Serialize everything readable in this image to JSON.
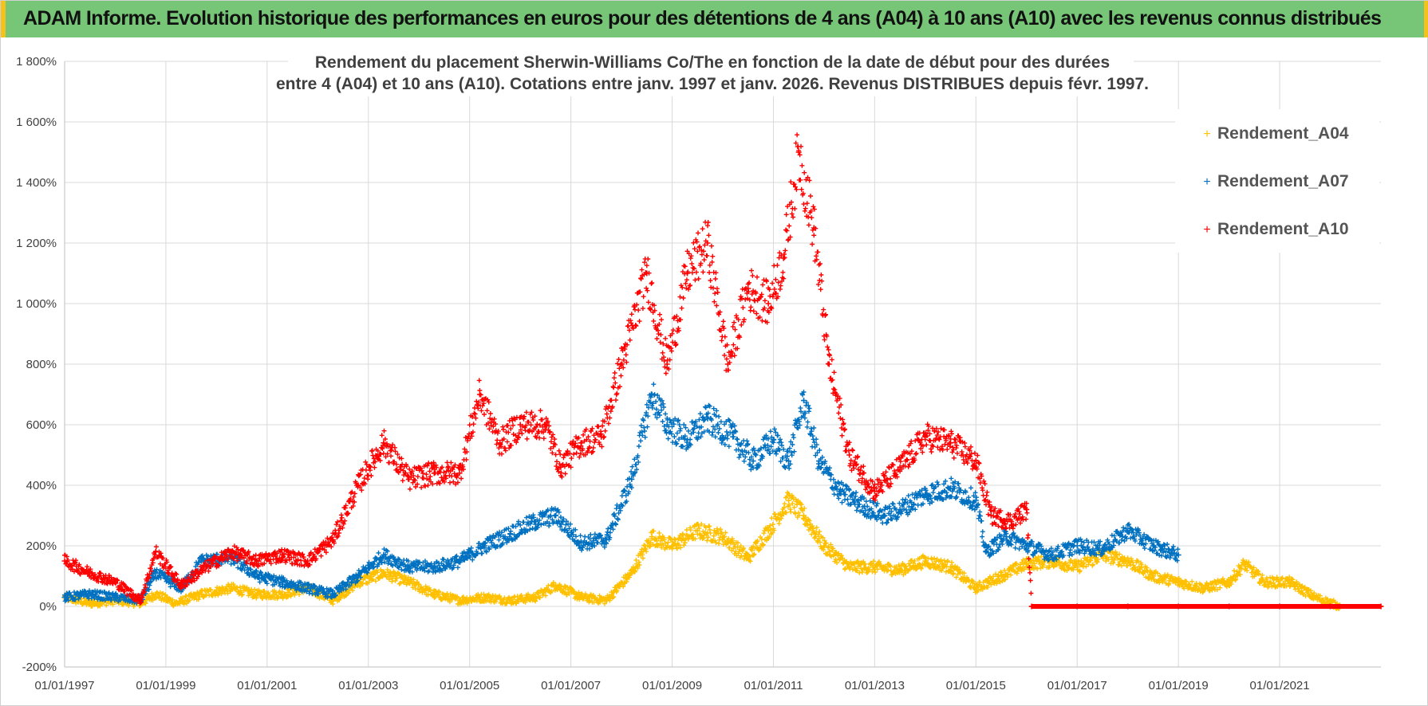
{
  "banner": {
    "title": "ADAM Informe. Evolution historique des performances en euros pour des détentions de 4 ans (A04) à 10 ans (A10) avec les revenus connus distribués"
  },
  "colors": {
    "banner_bg": "#77c678",
    "banner_accent": "#f4c21a",
    "A04": "#ffc000",
    "A07": "#0070c0",
    "A10": "#ff0000",
    "grid": "#d9d9d9"
  },
  "chart_data": {
    "type": "scatter",
    "title": "Rendement du placement Sherwin-Williams Co/The en fonction de la date de début pour des durées",
    "subtitle": "entre 4 (A04) et 10 ans (A10). Cotations entre janv. 1997 et janv. 2026. Revenus DISTRIBUES depuis févr. 1997.",
    "xlabel": "",
    "ylabel": "",
    "xlim": [
      1997.0,
      2023.0
    ],
    "ylim": [
      -200,
      1800
    ],
    "marker": "+",
    "grid": true,
    "legend_position": "right",
    "y_ticks": [
      {
        "value": -200,
        "label": "-200%"
      },
      {
        "value": 0,
        "label": "0%"
      },
      {
        "value": 200,
        "label": "200%"
      },
      {
        "value": 400,
        "label": "400%"
      },
      {
        "value": 600,
        "label": "600%"
      },
      {
        "value": 800,
        "label": "800%"
      },
      {
        "value": 1000,
        "label": "1 000%"
      },
      {
        "value": 1200,
        "label": "1 200%"
      },
      {
        "value": 1400,
        "label": "1 400%"
      },
      {
        "value": 1600,
        "label": "1 600%"
      },
      {
        "value": 1800,
        "label": "1 800%"
      }
    ],
    "x_ticks": [
      {
        "value": 1997,
        "label": "01/01/1997"
      },
      {
        "value": 1999,
        "label": "01/01/1999"
      },
      {
        "value": 2001,
        "label": "01/01/2001"
      },
      {
        "value": 2003,
        "label": "01/01/2003"
      },
      {
        "value": 2005,
        "label": "01/01/2005"
      },
      {
        "value": 2007,
        "label": "01/01/2007"
      },
      {
        "value": 2009,
        "label": "01/01/2009"
      },
      {
        "value": 2011,
        "label": "01/01/2011"
      },
      {
        "value": 2013,
        "label": "01/01/2013"
      },
      {
        "value": 2015,
        "label": "01/01/2015"
      },
      {
        "value": 2017,
        "label": "01/01/2017"
      },
      {
        "value": 2019,
        "label": "01/01/2019"
      },
      {
        "value": 2021,
        "label": "01/01/2021"
      }
    ],
    "series": [
      {
        "name": "Rendement_A04",
        "color": "#ffc000",
        "points": [
          [
            1997.0,
            30
          ],
          [
            1997.5,
            10
          ],
          [
            1998.0,
            20
          ],
          [
            1998.5,
            10
          ],
          [
            1998.8,
            40
          ],
          [
            1999.2,
            10
          ],
          [
            1999.7,
            40
          ],
          [
            2000.3,
            60
          ],
          [
            2000.8,
            40
          ],
          [
            2001.3,
            40
          ],
          [
            2001.8,
            60
          ],
          [
            2002.3,
            20
          ],
          [
            2002.8,
            80
          ],
          [
            2003.3,
            110
          ],
          [
            2003.8,
            80
          ],
          [
            2004.3,
            40
          ],
          [
            2004.8,
            20
          ],
          [
            2005.3,
            30
          ],
          [
            2005.8,
            20
          ],
          [
            2006.3,
            30
          ],
          [
            2006.7,
            70
          ],
          [
            2007.2,
            30
          ],
          [
            2007.7,
            20
          ],
          [
            2008.2,
            110
          ],
          [
            2008.6,
            230
          ],
          [
            2009.0,
            200
          ],
          [
            2009.5,
            250
          ],
          [
            2010.0,
            230
          ],
          [
            2010.5,
            160
          ],
          [
            2010.9,
            250
          ],
          [
            2011.3,
            350
          ],
          [
            2011.6,
            300
          ],
          [
            2012.0,
            200
          ],
          [
            2012.5,
            130
          ],
          [
            2013.0,
            130
          ],
          [
            2013.5,
            120
          ],
          [
            2014.0,
            150
          ],
          [
            2014.5,
            130
          ],
          [
            2015.0,
            60
          ],
          [
            2015.5,
            100
          ],
          [
            2016.0,
            140
          ],
          [
            2016.5,
            150
          ],
          [
            2017.0,
            130
          ],
          [
            2017.5,
            170
          ],
          [
            2018.0,
            150
          ],
          [
            2018.5,
            100
          ],
          [
            2019.0,
            80
          ],
          [
            2019.5,
            60
          ],
          [
            2020.0,
            80
          ],
          [
            2020.3,
            140
          ],
          [
            2020.7,
            80
          ],
          [
            2021.2,
            80
          ],
          [
            2021.7,
            30
          ],
          [
            2022.2,
            0
          ],
          [
            2023.0,
            0
          ]
        ]
      },
      {
        "name": "Rendement_A07",
        "color": "#0070c0",
        "points": [
          [
            1997.0,
            30
          ],
          [
            1997.5,
            40
          ],
          [
            1998.0,
            30
          ],
          [
            1998.5,
            20
          ],
          [
            1998.8,
            110
          ],
          [
            1999.3,
            60
          ],
          [
            1999.7,
            150
          ],
          [
            2000.3,
            160
          ],
          [
            2000.8,
            100
          ],
          [
            2001.3,
            80
          ],
          [
            2001.8,
            60
          ],
          [
            2002.3,
            40
          ],
          [
            2002.8,
            100
          ],
          [
            2003.3,
            170
          ],
          [
            2003.8,
            130
          ],
          [
            2004.3,
            130
          ],
          [
            2004.8,
            150
          ],
          [
            2005.3,
            200
          ],
          [
            2005.8,
            240
          ],
          [
            2006.3,
            280
          ],
          [
            2006.7,
            300
          ],
          [
            2007.2,
            210
          ],
          [
            2007.7,
            220
          ],
          [
            2008.2,
            420
          ],
          [
            2008.6,
            700
          ],
          [
            2008.9,
            600
          ],
          [
            2009.3,
            550
          ],
          [
            2009.7,
            620
          ],
          [
            2010.2,
            560
          ],
          [
            2010.6,
            480
          ],
          [
            2011.0,
            550
          ],
          [
            2011.3,
            480
          ],
          [
            2011.6,
            680
          ],
          [
            2011.9,
            480
          ],
          [
            2012.3,
            380
          ],
          [
            2012.8,
            330
          ],
          [
            2013.2,
            300
          ],
          [
            2013.5,
            320
          ],
          [
            2014.0,
            370
          ],
          [
            2014.5,
            390
          ],
          [
            2015.0,
            350
          ],
          [
            2015.2,
            180
          ],
          [
            2015.6,
            230
          ],
          [
            2016.0,
            200
          ],
          [
            2016.5,
            170
          ],
          [
            2017.0,
            200
          ],
          [
            2017.5,
            190
          ],
          [
            2018.0,
            250
          ],
          [
            2018.5,
            200
          ],
          [
            2019.0,
            170
          ]
        ]
      },
      {
        "name": "Rendement_A10",
        "color": "#ff0000",
        "points": [
          [
            1997.0,
            150
          ],
          [
            1997.5,
            110
          ],
          [
            1998.0,
            80
          ],
          [
            1998.5,
            20
          ],
          [
            1998.8,
            180
          ],
          [
            1999.3,
            70
          ],
          [
            1999.8,
            130
          ],
          [
            2000.3,
            180
          ],
          [
            2000.8,
            150
          ],
          [
            2001.3,
            170
          ],
          [
            2001.8,
            150
          ],
          [
            2002.3,
            220
          ],
          [
            2002.8,
            400
          ],
          [
            2003.3,
            540
          ],
          [
            2003.8,
            420
          ],
          [
            2004.3,
            440
          ],
          [
            2004.8,
            440
          ],
          [
            2005.2,
            700
          ],
          [
            2005.6,
            540
          ],
          [
            2006.0,
            600
          ],
          [
            2006.5,
            600
          ],
          [
            2006.8,
            460
          ],
          [
            2007.2,
            540
          ],
          [
            2007.6,
            560
          ],
          [
            2008.0,
            800
          ],
          [
            2008.5,
            1100
          ],
          [
            2008.9,
            800
          ],
          [
            2009.3,
            1100
          ],
          [
            2009.7,
            1200
          ],
          [
            2010.1,
            800
          ],
          [
            2010.5,
            1050
          ],
          [
            2010.9,
            1000
          ],
          [
            2011.2,
            1150
          ],
          [
            2011.5,
            1500
          ],
          [
            2011.8,
            1250
          ],
          [
            2012.1,
            800
          ],
          [
            2012.5,
            500
          ],
          [
            2013.0,
            380
          ],
          [
            2013.5,
            460
          ],
          [
            2014.0,
            560
          ],
          [
            2014.5,
            540
          ],
          [
            2015.0,
            480
          ],
          [
            2015.3,
            300
          ],
          [
            2015.7,
            280
          ],
          [
            2016.0,
            320
          ],
          [
            2016.1,
            0
          ],
          [
            2017.0,
            0
          ],
          [
            2018.0,
            0
          ],
          [
            2019.0,
            0
          ],
          [
            2020.0,
            0
          ],
          [
            2021.0,
            0
          ],
          [
            2022.0,
            0
          ],
          [
            2023.0,
            0
          ]
        ]
      }
    ]
  }
}
